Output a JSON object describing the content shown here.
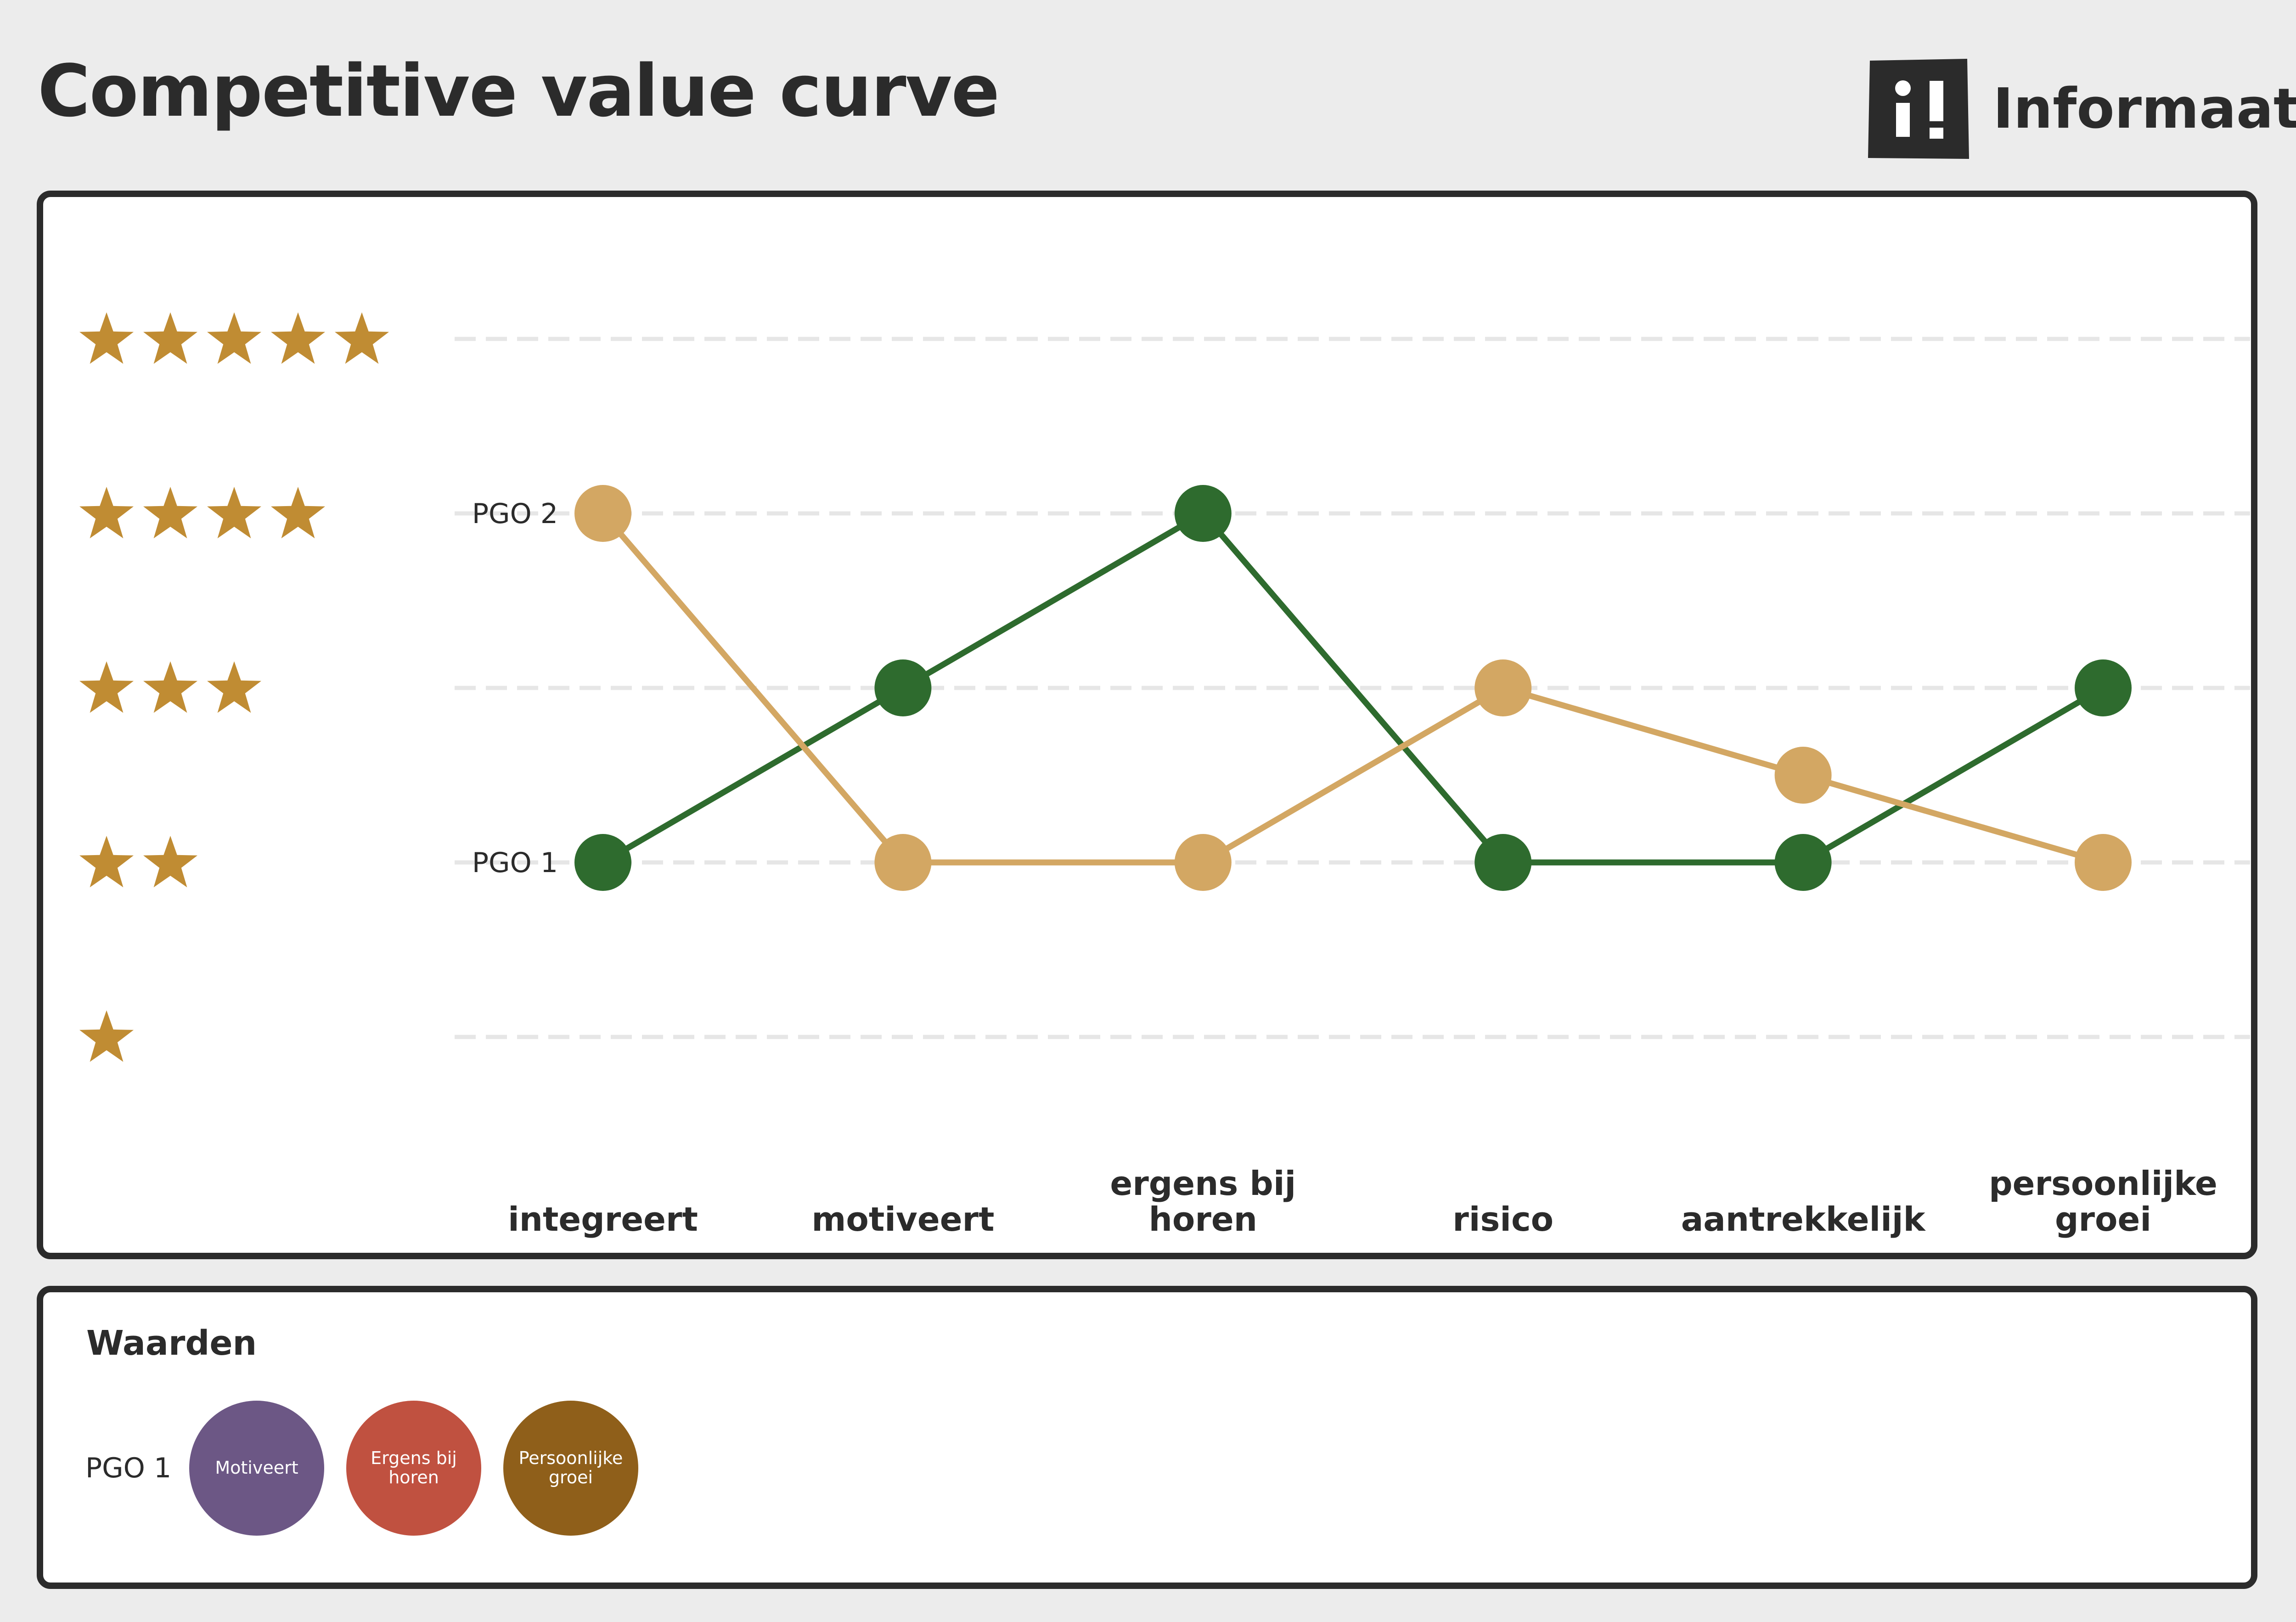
{
  "page": {
    "title": "Competitive value curve",
    "brand_name": "Informaat",
    "brand_icon": "informaat-logo-icon"
  },
  "chart_data": {
    "type": "line",
    "categories": [
      "integreert",
      "motiveert",
      "ergens bij|horen",
      "risico",
      "aantrekkelijk",
      "persoonlijke|groei"
    ],
    "ylim": [
      1,
      5
    ],
    "y_axis_labels": [
      "★",
      "★★",
      "★★★",
      "★★★★",
      "★★★★★"
    ],
    "grid": true,
    "series": [
      {
        "name": "PGO 1",
        "color": "#2e6b2e",
        "values": [
          2,
          3,
          4,
          2,
          2,
          3
        ]
      },
      {
        "name": "PGO 2",
        "color": "#d3a763",
        "values": [
          4,
          2,
          2,
          3,
          2.5,
          2
        ]
      }
    ],
    "colors": {
      "star": "#c08c33",
      "grid": "#e6e6e6"
    }
  },
  "values_section": {
    "heading": "Waarden",
    "row_label": "PGO 1",
    "items": [
      {
        "label": "Motiveert",
        "color": "#6c5785"
      },
      {
        "label": "Ergens bij horen",
        "color": "#c05140"
      },
      {
        "label": "Persoonlijke groei",
        "color": "#8f5f1a"
      }
    ]
  }
}
